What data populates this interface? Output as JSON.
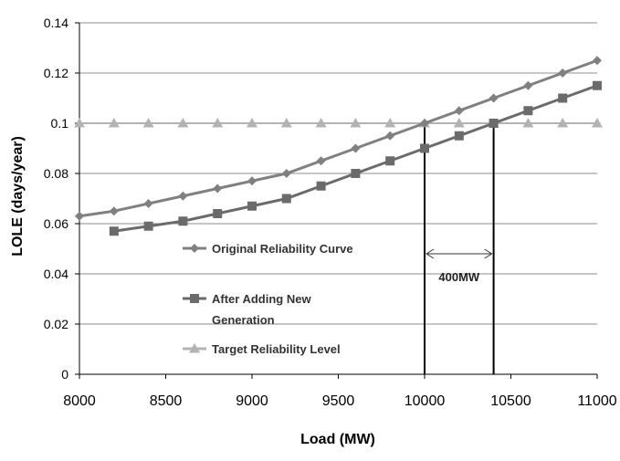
{
  "chart_data": {
    "type": "line",
    "title": "",
    "xlabel": "Load (MW)",
    "ylabel": "LOLE (days/year)",
    "xlim": [
      8000,
      11000
    ],
    "ylim": [
      0,
      0.14
    ],
    "x_ticks": [
      8000,
      8500,
      9000,
      9500,
      10000,
      10500,
      11000
    ],
    "y_ticks": [
      0,
      0.02,
      0.04,
      0.06,
      0.08,
      0.1,
      0.12,
      0.14
    ],
    "x_tick_labels": [
      "8000",
      "8500",
      "9000",
      "9500",
      "10000",
      "10500",
      "11000"
    ],
    "y_tick_labels": [
      "0",
      "0.02",
      "0.04",
      "0.06",
      "0.08",
      "0.1",
      "0.12",
      "0.14"
    ],
    "grid": true,
    "legend_position": "center-left",
    "series": [
      {
        "name": "Original Reliability Curve",
        "color": "#808080",
        "marker": "diamond",
        "x": [
          8000,
          8200,
          8400,
          8600,
          8800,
          9000,
          9200,
          9400,
          9600,
          9800,
          10000,
          10200,
          10400,
          10600,
          10800,
          11000
        ],
        "y": [
          0.063,
          0.065,
          0.068,
          0.071,
          0.074,
          0.077,
          0.08,
          0.085,
          0.09,
          0.095,
          0.1,
          0.105,
          0.11,
          0.115,
          0.12,
          0.125
        ]
      },
      {
        "name": "After Adding New Generation",
        "legend_lines": [
          "After Adding New",
          "Generation"
        ],
        "color": "#6b6b6b",
        "marker": "square",
        "x": [
          8200,
          8400,
          8600,
          8800,
          9000,
          9200,
          9400,
          9600,
          9800,
          10000,
          10200,
          10400,
          10600,
          10800,
          11000
        ],
        "y": [
          0.057,
          0.059,
          0.061,
          0.064,
          0.067,
          0.07,
          0.075,
          0.08,
          0.085,
          0.09,
          0.095,
          0.1,
          0.105,
          0.11,
          0.115
        ]
      },
      {
        "name": "Target Reliability Level",
        "color": "#b3b3b3",
        "marker": "triangle",
        "x": [
          8000,
          8200,
          8400,
          8600,
          8800,
          9000,
          9200,
          9400,
          9600,
          9800,
          10000,
          10200,
          10400,
          10600,
          10800,
          11000
        ],
        "y": [
          0.1,
          0.1,
          0.1,
          0.1,
          0.1,
          0.1,
          0.1,
          0.1,
          0.1,
          0.1,
          0.1,
          0.1,
          0.1,
          0.1,
          0.1,
          0.1
        ]
      }
    ],
    "annotations": {
      "vertical_lines_x": [
        10000,
        10400
      ],
      "vertical_line_color": "#000000",
      "span_label": "400MW",
      "span_from": 10000,
      "span_to": 10400,
      "span_y": 0.048
    }
  }
}
